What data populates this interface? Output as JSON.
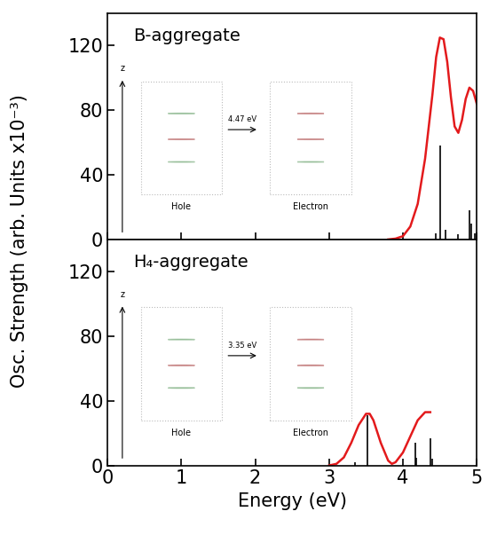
{
  "chart_data": [
    {
      "type": "line",
      "title": "B-aggregate",
      "ylabel": "Osc. Strength (arb. Units x10⁻³)",
      "x": [
        3.8,
        3.9,
        4.0,
        4.1,
        4.2,
        4.3,
        4.4,
        4.45,
        4.5,
        4.55,
        4.6,
        4.65,
        4.7,
        4.75,
        4.8,
        4.85,
        4.9,
        4.95,
        5.0
      ],
      "values": [
        0,
        0.5,
        2,
        8,
        22,
        50,
        90,
        113,
        125,
        124,
        110,
        88,
        70,
        66,
        74,
        87,
        94,
        92,
        84
      ],
      "color": "#e31a1c",
      "sticks": {
        "x": [
          4.45,
          4.51,
          4.58,
          4.75,
          4.9,
          4.93,
          4.97
        ],
        "values": [
          4,
          58,
          6,
          3,
          18,
          10,
          4
        ],
        "color": "#000000"
      },
      "xlim": [
        0,
        5
      ],
      "xticks": [
        0,
        1,
        2,
        3,
        4,
        5
      ],
      "ylim": [
        0,
        140
      ],
      "yticks": [
        0,
        40,
        80,
        120
      ],
      "tick_labels": "y",
      "inset": {
        "axis_label": "z",
        "hole_label": "Hole",
        "electron_label": "Electron",
        "energy_label": "4.47 eV"
      }
    },
    {
      "type": "line",
      "title": "H₄-aggregate",
      "xlabel": "Energy (eV)",
      "x": [
        3.0,
        3.1,
        3.2,
        3.3,
        3.4,
        3.5,
        3.55,
        3.6,
        3.7,
        3.8,
        3.85,
        3.9,
        4.0,
        4.1,
        4.2,
        4.3,
        4.37
      ],
      "values": [
        0,
        1,
        5,
        14,
        25,
        32,
        32,
        28,
        14,
        3,
        1,
        2,
        8,
        18,
        28,
        33,
        33
      ],
      "color": "#e31a1c",
      "sticks": {
        "x": [
          3.35,
          3.52,
          4.17,
          4.18,
          4.37,
          4.4
        ],
        "values": [
          2,
          31,
          14,
          5,
          17,
          4
        ],
        "color": "#000000"
      },
      "xlim": [
        0,
        5
      ],
      "xticks": [
        0,
        1,
        2,
        3,
        4,
        5
      ],
      "ylim": [
        0,
        140
      ],
      "yticks": [
        0,
        40,
        80,
        120
      ],
      "inset": {
        "axis_label": "z",
        "hole_label": "Hole",
        "electron_label": "Electron",
        "energy_label": "3.35 eV"
      }
    }
  ]
}
